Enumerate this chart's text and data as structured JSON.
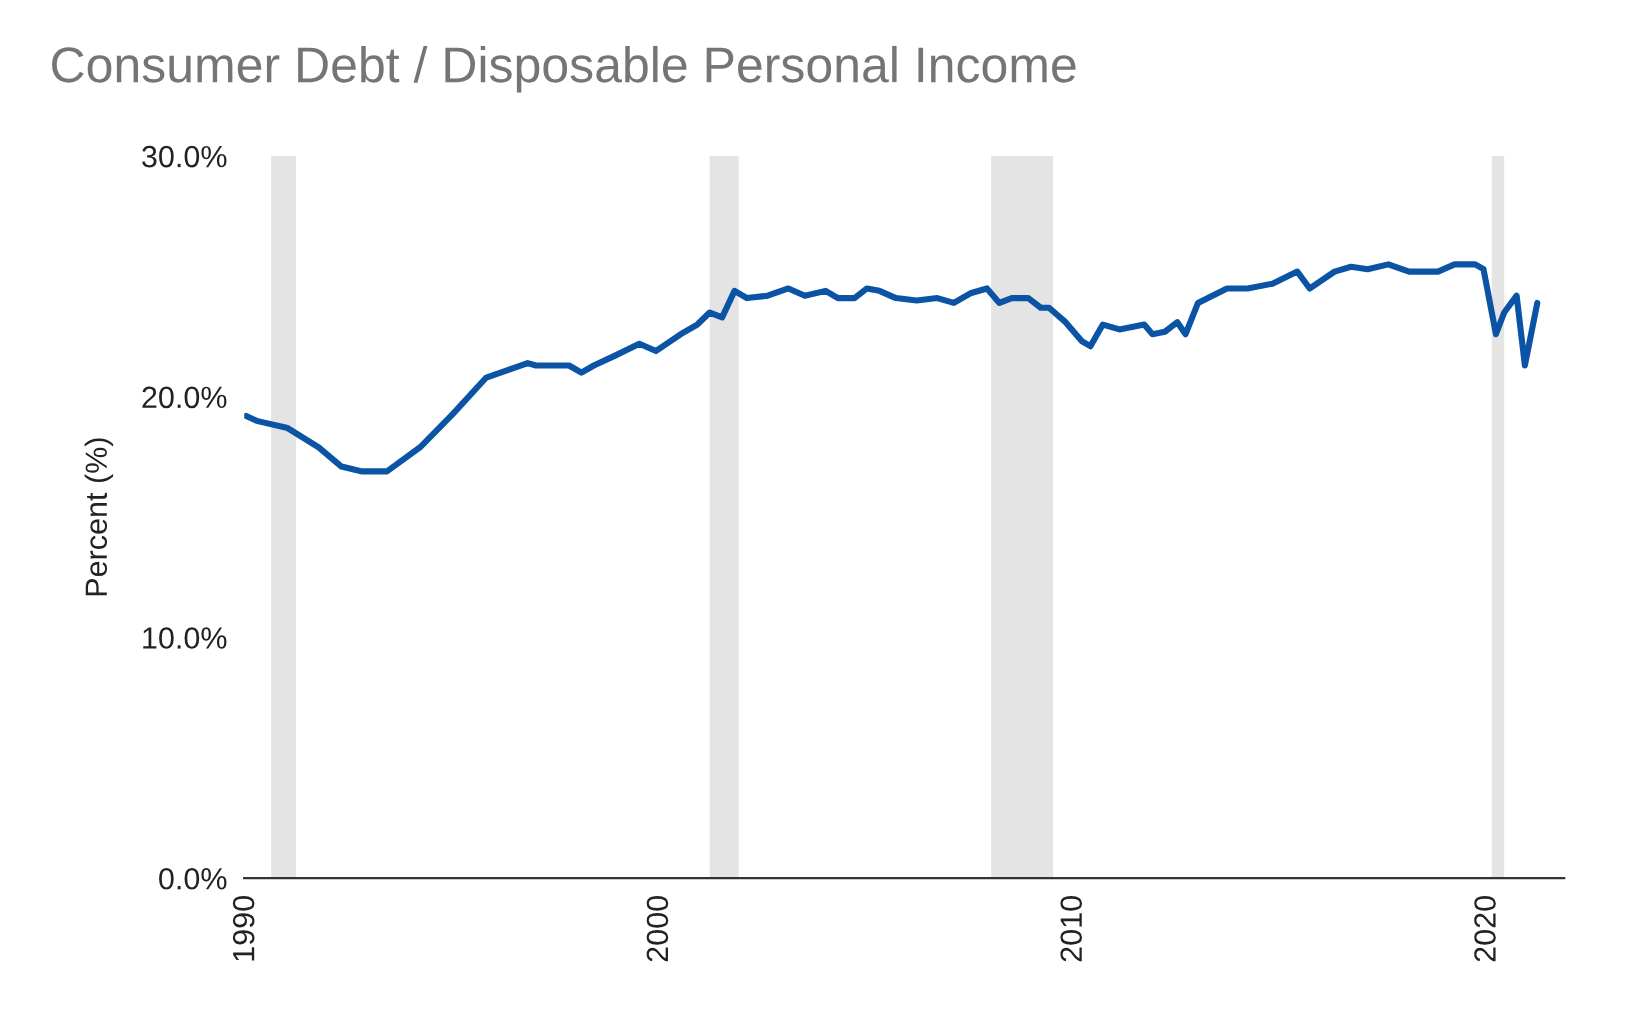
{
  "chart_data": {
    "type": "line",
    "title": "Consumer Debt / Disposable Personal Income",
    "ylabel": "Percent (%)",
    "x": [
      1990.0,
      1990.25,
      1991.0,
      1991.75,
      1992.3,
      1992.8,
      1993.4,
      1994.2,
      1995.0,
      1995.8,
      1996.3,
      1996.8,
      1997.0,
      1997.8,
      1998.1,
      1998.4,
      1998.9,
      1999.5,
      1999.9,
      2000.5,
      2000.9,
      2001.2,
      2001.5,
      2001.8,
      2002.1,
      2002.6,
      2003.1,
      2003.5,
      2004.0,
      2004.3,
      2004.7,
      2005.0,
      2005.3,
      2005.7,
      2006.2,
      2006.7,
      2007.1,
      2007.5,
      2007.9,
      2008.2,
      2008.5,
      2008.9,
      2009.2,
      2009.4,
      2009.8,
      2010.2,
      2010.4,
      2010.7,
      2011.1,
      2011.7,
      2011.9,
      2012.2,
      2012.5,
      2012.7,
      2013.0,
      2013.7,
      2014.2,
      2014.8,
      2015.4,
      2015.7,
      2016.3,
      2016.7,
      2017.1,
      2017.6,
      2018.1,
      2018.8,
      2019.2,
      2019.7,
      2019.9,
      2020.2,
      2020.4,
      2020.7,
      2020.9,
      2021.2
    ],
    "series": [
      {
        "color": "#0b54a5",
        "values": [
          19.2,
          19.0,
          18.7,
          17.9,
          17.1,
          16.9,
          16.9,
          17.9,
          19.3,
          20.8,
          21.1,
          21.4,
          21.3,
          21.3,
          21.0,
          21.3,
          21.7,
          22.2,
          21.9,
          22.6,
          23.0,
          23.5,
          23.3,
          24.4,
          24.1,
          24.2,
          24.5,
          24.2,
          24.4,
          24.1,
          24.1,
          24.5,
          24.4,
          24.1,
          24.0,
          24.1,
          23.9,
          24.3,
          24.5,
          23.9,
          24.1,
          24.1,
          23.7,
          23.7,
          23.1,
          22.3,
          22.1,
          23.0,
          22.8,
          23.0,
          22.6,
          22.7,
          23.1,
          22.6,
          23.9,
          24.5,
          24.5,
          24.7,
          25.2,
          24.5,
          25.2,
          25.4,
          25.3,
          25.5,
          25.2,
          25.2,
          25.5,
          25.5,
          25.3,
          22.6,
          23.5,
          24.2,
          21.3,
          23.9
        ]
      }
    ],
    "xlim": [
      1989.95,
      2021.85
    ],
    "xticks": [
      1990,
      2000,
      2010,
      2020
    ],
    "ylim": [
      0,
      30
    ],
    "yticks": [
      {
        "value": 0,
        "label": "0.0%"
      },
      {
        "value": 10,
        "label": "10.0%"
      },
      {
        "value": 20,
        "label": "20.0%"
      },
      {
        "value": 30,
        "label": "30.0%"
      }
    ],
    "bands": [
      {
        "axis": "x",
        "from": 1990.6,
        "to": 1991.2,
        "color": "#e4e4e4"
      },
      {
        "axis": "x",
        "from": 2001.2,
        "to": 2001.9,
        "color": "#e4e4e4"
      },
      {
        "axis": "x",
        "from": 2008.0,
        "to": 2009.5,
        "color": "#e4e4e4"
      },
      {
        "axis": "x",
        "from": 2020.1,
        "to": 2020.4,
        "color": "#e4e4e4"
      }
    ],
    "grid": false,
    "legend": false
  }
}
